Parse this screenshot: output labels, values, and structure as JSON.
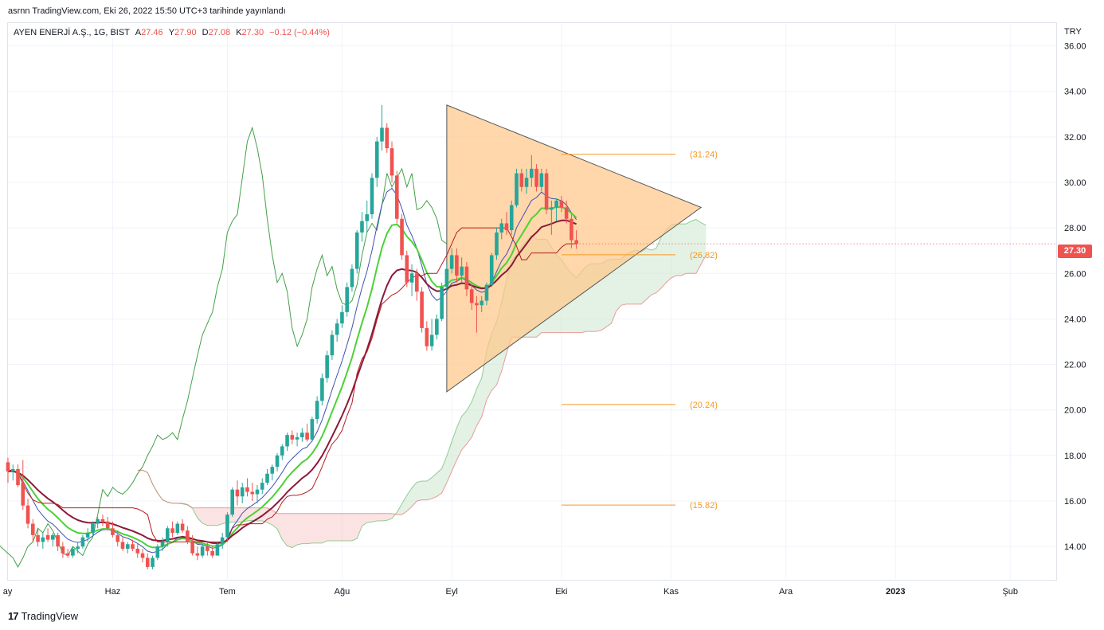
{
  "header": {
    "publish_line": "asrnn TradingView.com, Eki 26, 2022 15:50 UTC+3 tarihinde yayınlandı"
  },
  "legend": {
    "symbol": "AYEN ENERJİ A.Ş., 1G, BIST",
    "open_label": "A",
    "open": "27.46",
    "high_label": "Y",
    "high": "27.90",
    "low_label": "D",
    "low": "27.08",
    "close_label": "K",
    "close": "27.30",
    "change": "−0.12 (−0.44%)"
  },
  "axis": {
    "currency": "TRY",
    "last_price": "27.30"
  },
  "footer": {
    "brand": "TradingView",
    "brand_logo": "17"
  },
  "colors": {
    "up": "#26a69a",
    "down": "#ef5350",
    "triangle": "#ffc88a",
    "level": "#f59a23",
    "tenkan": "#4cd137",
    "kijun": "#8b1a3a",
    "cloud_up": "#c8e6c9",
    "cloud_down": "#f8c7c7"
  },
  "chart_data": {
    "type": "candlestick",
    "title": "AYEN ENERJİ A.Ş., 1G, BIST",
    "ylim": [
      12.5,
      37
    ],
    "y_ticks": [
      14,
      16,
      18,
      20,
      22,
      24,
      26,
      28,
      30,
      32,
      34,
      36
    ],
    "x_ticks": [
      {
        "label": "ay",
        "i": -1
      },
      {
        "label": "Haz",
        "i": 21
      },
      {
        "label": "Tem",
        "i": 44
      },
      {
        "label": "Ağu",
        "i": 67
      },
      {
        "label": "Eyl",
        "i": 89
      },
      {
        "label": "Eki",
        "i": 111
      },
      {
        "label": "Kas",
        "i": 133
      },
      {
        "label": "Ara",
        "i": 156
      },
      {
        "label": "2023",
        "i": 178
      },
      {
        "label": "Şub",
        "i": 201
      }
    ],
    "levels": [
      {
        "label": "(31.24)",
        "value": 31.24
      },
      {
        "label": "(26.82)",
        "value": 26.82
      },
      {
        "label": "(20.24)",
        "value": 20.24
      },
      {
        "label": "(15.82)",
        "value": 15.82
      }
    ],
    "triangle": [
      [
        88,
        33.4
      ],
      [
        88,
        20.8
      ],
      [
        139,
        28.9
      ]
    ],
    "candles": [
      [
        17.7,
        17.9,
        16.8,
        17.3
      ],
      [
        17.3,
        17.6,
        16.9,
        17.4
      ],
      [
        17.4,
        17.6,
        16.6,
        16.7
      ],
      [
        16.8,
        17.8,
        15.6,
        15.8
      ],
      [
        15.8,
        16.1,
        14.8,
        15.0
      ],
      [
        15.0,
        15.2,
        14.2,
        14.5
      ],
      [
        14.5,
        14.8,
        14.0,
        14.2
      ],
      [
        14.2,
        14.6,
        13.9,
        14.4
      ],
      [
        14.5,
        14.8,
        14.2,
        14.3
      ],
      [
        14.3,
        14.6,
        14.0,
        14.5
      ],
      [
        14.5,
        14.6,
        13.8,
        14.0
      ],
      [
        14.0,
        14.2,
        13.5,
        13.7
      ],
      [
        13.7,
        13.9,
        13.5,
        13.6
      ],
      [
        13.6,
        14.0,
        13.5,
        13.9
      ],
      [
        13.9,
        14.2,
        13.7,
        14.0
      ],
      [
        14.0,
        14.5,
        13.9,
        14.4
      ],
      [
        14.4,
        14.8,
        14.2,
        14.6
      ],
      [
        14.6,
        15.1,
        14.5,
        15.0
      ],
      [
        15.0,
        15.3,
        14.8,
        15.2
      ],
      [
        15.2,
        15.4,
        14.9,
        15.1
      ],
      [
        15.1,
        15.3,
        14.7,
        14.8
      ],
      [
        14.8,
        15.1,
        14.4,
        14.5
      ],
      [
        14.5,
        14.7,
        14.0,
        14.2
      ],
      [
        14.2,
        14.4,
        13.8,
        13.9
      ],
      [
        13.9,
        14.2,
        13.7,
        14.1
      ],
      [
        14.1,
        14.3,
        13.8,
        13.9
      ],
      [
        13.9,
        14.1,
        13.5,
        13.7
      ],
      [
        13.7,
        13.9,
        13.3,
        13.5
      ],
      [
        13.5,
        13.7,
        13.0,
        13.1
      ],
      [
        13.1,
        13.6,
        13.0,
        13.5
      ],
      [
        13.5,
        14.1,
        13.4,
        14.0
      ],
      [
        14.0,
        14.4,
        13.8,
        14.2
      ],
      [
        14.2,
        14.9,
        14.0,
        14.8
      ],
      [
        14.8,
        15.1,
        14.4,
        14.6
      ],
      [
        14.6,
        15.1,
        14.5,
        15.0
      ],
      [
        15.0,
        15.2,
        14.6,
        14.7
      ],
      [
        14.7,
        14.9,
        14.1,
        14.2
      ],
      [
        14.2,
        14.5,
        13.6,
        13.7
      ],
      [
        13.7,
        14.0,
        13.4,
        13.6
      ],
      [
        13.6,
        14.1,
        13.5,
        14.0
      ],
      [
        14.0,
        14.2,
        13.6,
        13.8
      ],
      [
        13.8,
        14.0,
        13.5,
        13.6
      ],
      [
        13.6,
        14.2,
        13.6,
        14.1
      ],
      [
        14.1,
        14.6,
        13.9,
        14.4
      ],
      [
        14.4,
        15.5,
        14.2,
        15.4
      ],
      [
        15.4,
        16.6,
        15.3,
        16.5
      ],
      [
        16.5,
        16.9,
        15.8,
        16.2
      ],
      [
        16.2,
        16.8,
        15.9,
        16.6
      ],
      [
        16.6,
        17.0,
        16.2,
        16.4
      ],
      [
        16.4,
        16.8,
        16.0,
        16.3
      ],
      [
        16.3,
        16.7,
        15.9,
        16.5
      ],
      [
        16.5,
        17.0,
        16.3,
        16.8
      ],
      [
        16.8,
        17.4,
        16.7,
        17.2
      ],
      [
        17.2,
        17.6,
        16.9,
        17.5
      ],
      [
        17.5,
        18.1,
        17.3,
        18.0
      ],
      [
        18.0,
        18.5,
        17.8,
        18.4
      ],
      [
        18.4,
        19.0,
        18.2,
        18.9
      ],
      [
        18.9,
        19.1,
        18.5,
        18.7
      ],
      [
        18.7,
        19.0,
        18.4,
        18.8
      ],
      [
        18.8,
        19.2,
        18.6,
        19.0
      ],
      [
        19.0,
        19.4,
        18.6,
        18.7
      ],
      [
        18.7,
        19.7,
        18.6,
        19.6
      ],
      [
        19.6,
        20.6,
        19.4,
        20.4
      ],
      [
        20.4,
        21.6,
        20.2,
        21.4
      ],
      [
        21.4,
        22.6,
        21.2,
        22.4
      ],
      [
        22.4,
        23.5,
        22.2,
        23.3
      ],
      [
        23.3,
        24.0,
        23.0,
        23.8
      ],
      [
        23.8,
        24.6,
        23.6,
        24.3
      ],
      [
        24.3,
        25.6,
        24.1,
        25.4
      ],
      [
        25.4,
        26.4,
        25.2,
        26.2
      ],
      [
        26.2,
        27.9,
        26.0,
        27.8
      ],
      [
        27.8,
        28.7,
        27.4,
        28.3
      ],
      [
        28.3,
        29.2,
        27.8,
        28.6
      ],
      [
        28.6,
        30.4,
        28.4,
        30.2
      ],
      [
        30.2,
        32.0,
        29.8,
        31.8
      ],
      [
        31.8,
        33.4,
        31.4,
        32.4
      ],
      [
        32.4,
        32.6,
        31.3,
        31.5
      ],
      [
        31.5,
        31.8,
        30.0,
        30.3
      ],
      [
        30.3,
        30.5,
        28.2,
        28.4
      ],
      [
        28.4,
        28.6,
        26.6,
        26.8
      ],
      [
        26.8,
        27.0,
        25.4,
        25.6
      ],
      [
        25.6,
        26.4,
        25.0,
        26.0
      ],
      [
        26.0,
        26.2,
        24.8,
        25.2
      ],
      [
        25.2,
        25.4,
        23.4,
        23.6
      ],
      [
        23.6,
        23.9,
        22.6,
        22.8
      ],
      [
        22.8,
        24.0,
        22.6,
        23.3
      ],
      [
        23.3,
        24.2,
        23.1,
        24.0
      ],
      [
        24.0,
        25.6,
        23.9,
        25.4
      ],
      [
        25.4,
        26.4,
        25.2,
        26.2
      ],
      [
        26.2,
        27.1,
        26.0,
        26.8
      ],
      [
        26.8,
        27.1,
        25.6,
        25.9
      ],
      [
        25.9,
        26.7,
        25.6,
        26.3
      ],
      [
        26.3,
        26.5,
        25.0,
        25.3
      ],
      [
        25.3,
        25.6,
        24.4,
        24.7
      ],
      [
        24.7,
        25.0,
        23.4,
        24.6
      ],
      [
        24.6,
        25.0,
        24.3,
        24.8
      ],
      [
        24.8,
        25.6,
        24.6,
        25.5
      ],
      [
        25.5,
        26.9,
        25.4,
        26.8
      ],
      [
        26.8,
        28.0,
        26.6,
        27.8
      ],
      [
        27.8,
        28.4,
        27.5,
        28.2
      ],
      [
        28.2,
        28.7,
        27.7,
        27.9
      ],
      [
        27.9,
        29.2,
        27.7,
        29.0
      ],
      [
        29.0,
        30.6,
        28.9,
        30.4
      ],
      [
        30.4,
        30.6,
        29.6,
        29.8
      ],
      [
        29.8,
        30.6,
        29.5,
        30.2
      ],
      [
        30.2,
        31.2,
        29.8,
        30.6
      ],
      [
        30.6,
        30.8,
        29.6,
        29.8
      ],
      [
        29.8,
        30.6,
        29.6,
        30.4
      ],
      [
        30.4,
        30.6,
        28.6,
        28.8
      ],
      [
        28.8,
        29.2,
        27.7,
        28.9
      ],
      [
        28.9,
        29.3,
        28.3,
        29.2
      ],
      [
        29.2,
        29.4,
        28.7,
        28.9
      ],
      [
        28.9,
        29.2,
        28.2,
        28.4
      ],
      [
        28.4,
        28.6,
        27.1,
        27.46
      ],
      [
        27.46,
        27.9,
        27.08,
        27.3
      ]
    ]
  }
}
